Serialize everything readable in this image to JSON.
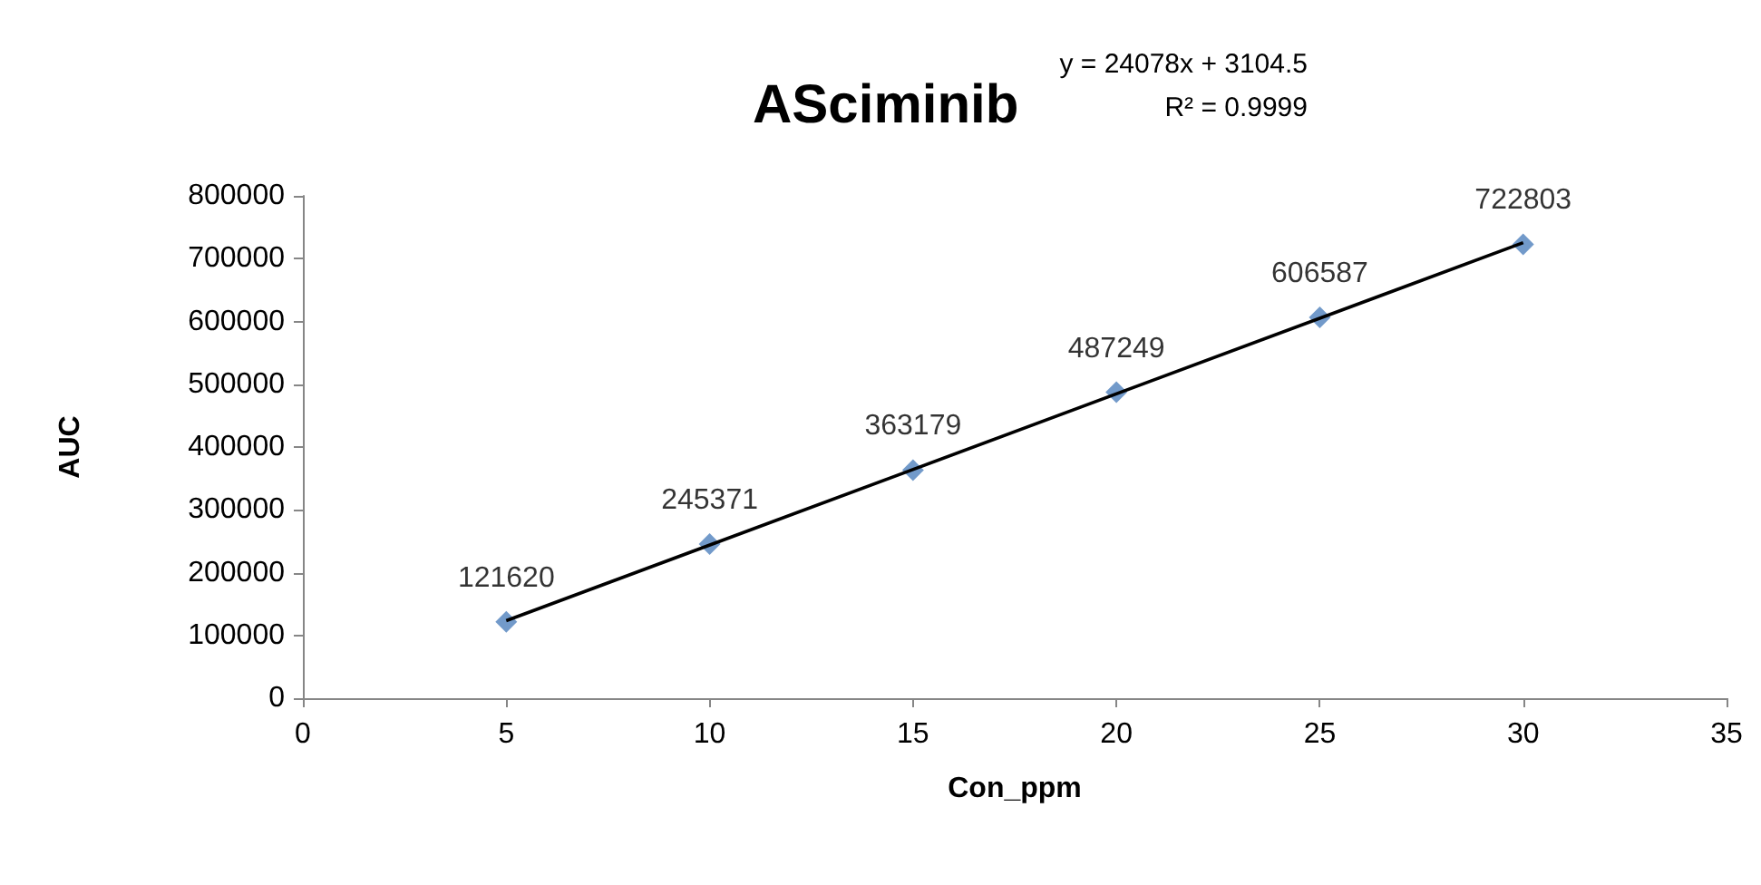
{
  "chart_data": {
    "type": "scatter",
    "title": "ASciminib",
    "xlabel": "Con_ppm",
    "ylabel": "AUC",
    "annotations": [
      "y = 24078x + 3104.5",
      "R² = 0.9999"
    ],
    "x": [
      5,
      10,
      15,
      20,
      25,
      30
    ],
    "series": [
      {
        "color": "#4f81bd",
        "marker": "diamond",
        "values": [
          121620,
          245371,
          363179,
          487249,
          606587,
          722803
        ],
        "value_labels": [
          "121620",
          "245371",
          "363179",
          "487249",
          "606587",
          "722803"
        ]
      },
      {
        "type": "line",
        "color": "#000000",
        "marker": "none",
        "line_style": "solid",
        "x": [
          5,
          30
        ],
        "values": [
          123500,
          725400
        ]
      }
    ],
    "xlim": [
      0,
      35
    ],
    "xticks": [
      0,
      5,
      10,
      15,
      20,
      25,
      30,
      35
    ],
    "ylim": [
      0,
      800000
    ],
    "yticks": [
      0,
      100000,
      200000,
      300000,
      400000,
      500000,
      600000,
      700000,
      800000
    ],
    "grid": false
  }
}
